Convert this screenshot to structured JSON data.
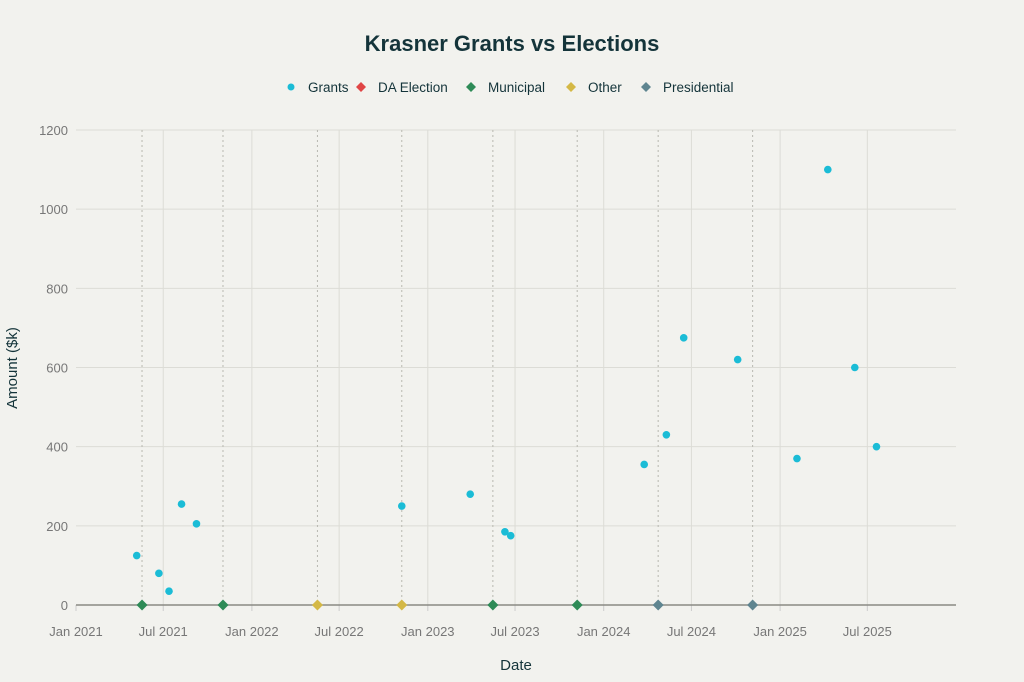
{
  "chart_data": {
    "type": "scatter",
    "title": "Krasner Grants vs Elections",
    "xlabel": "Date",
    "ylabel": "Amount ($k)",
    "xlim": [
      "2021-01-01",
      "2026-01-01"
    ],
    "ylim": [
      0,
      1200
    ],
    "yticks": [
      0,
      200,
      400,
      600,
      800,
      1000,
      1200
    ],
    "xticks": [
      {
        "date": "2021-01-01",
        "label": "Jan 2021"
      },
      {
        "date": "2021-07-01",
        "label": "Jul 2021"
      },
      {
        "date": "2022-01-01",
        "label": "Jan 2022"
      },
      {
        "date": "2022-07-01",
        "label": "Jul 2022"
      },
      {
        "date": "2023-01-01",
        "label": "Jan 2023"
      },
      {
        "date": "2023-07-01",
        "label": "Jul 2023"
      },
      {
        "date": "2024-01-01",
        "label": "Jan 2024"
      },
      {
        "date": "2024-07-01",
        "label": "Jul 2024"
      },
      {
        "date": "2025-01-01",
        "label": "Jan 2025"
      },
      {
        "date": "2025-07-01",
        "label": "Jul 2025"
      }
    ],
    "grid": true,
    "legend_position": "top-center",
    "series": [
      {
        "name": "Grants",
        "marker": "circle",
        "color": "#1bbcd6",
        "points": [
          {
            "x": "2021-05-07",
            "y": 125
          },
          {
            "x": "2021-06-22",
            "y": 80
          },
          {
            "x": "2021-07-13",
            "y": 35
          },
          {
            "x": "2021-08-08",
            "y": 255
          },
          {
            "x": "2021-09-08",
            "y": 205
          },
          {
            "x": "2022-11-08",
            "y": 250
          },
          {
            "x": "2023-03-30",
            "y": 280
          },
          {
            "x": "2023-06-10",
            "y": 185
          },
          {
            "x": "2023-06-22",
            "y": 175
          },
          {
            "x": "2024-03-25",
            "y": 355
          },
          {
            "x": "2024-05-10",
            "y": 430
          },
          {
            "x": "2024-06-15",
            "y": 675
          },
          {
            "x": "2024-10-05",
            "y": 620
          },
          {
            "x": "2025-02-05",
            "y": 370
          },
          {
            "x": "2025-04-10",
            "y": 1100
          },
          {
            "x": "2025-06-05",
            "y": 600
          },
          {
            "x": "2025-07-20",
            "y": 400
          }
        ]
      },
      {
        "name": "DA Election",
        "marker": "diamond",
        "color": "#e04545",
        "points": []
      },
      {
        "name": "Municipal",
        "marker": "diamond",
        "color": "#2e8b57",
        "points": [
          {
            "x": "2021-05-18",
            "y": 0
          },
          {
            "x": "2021-11-02",
            "y": 0
          },
          {
            "x": "2023-05-16",
            "y": 0
          },
          {
            "x": "2023-11-07",
            "y": 0
          }
        ]
      },
      {
        "name": "Other",
        "marker": "diamond",
        "color": "#d4b845",
        "points": [
          {
            "x": "2022-05-17",
            "y": 0
          },
          {
            "x": "2022-11-08",
            "y": 0
          }
        ]
      },
      {
        "name": "Presidential",
        "marker": "diamond",
        "color": "#5f8590",
        "points": [
          {
            "x": "2024-04-23",
            "y": 0
          },
          {
            "x": "2024-11-05",
            "y": 0
          }
        ]
      }
    ]
  }
}
